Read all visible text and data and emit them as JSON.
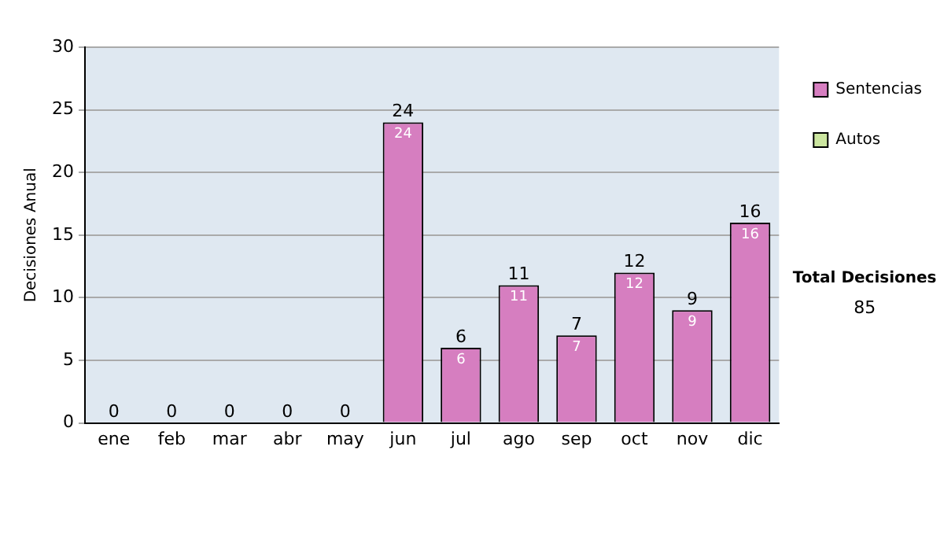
{
  "chart_data": {
    "type": "bar",
    "stacked": true,
    "ylabel": "Decisiones Anual",
    "categories": [
      "ene",
      "feb",
      "mar",
      "abr",
      "may",
      "jun",
      "jul",
      "ago",
      "sep",
      "oct",
      "nov",
      "dic"
    ],
    "series": [
      {
        "name": "Sentencias",
        "color": "#d67ec0",
        "values": [
          0,
          0,
          0,
          0,
          0,
          24,
          6,
          11,
          7,
          12,
          9,
          16
        ],
        "value_labels": [
          null,
          null,
          null,
          null,
          null,
          "24",
          "6",
          "11",
          "7",
          "12",
          "9",
          "16"
        ]
      },
      {
        "name": "Autos",
        "color": "#cce6a0",
        "values": [
          0,
          0,
          0,
          0,
          0,
          0,
          0,
          0,
          0,
          0,
          0,
          0
        ]
      }
    ],
    "totals": [
      "0",
      "0",
      "0",
      "0",
      "0",
      "24",
      "6",
      "11",
      "7",
      "12",
      "9",
      "16"
    ],
    "ylim": [
      0,
      30
    ],
    "yticks": [
      0,
      5,
      10,
      15,
      20,
      25,
      30
    ],
    "grid": "y",
    "legend": "right",
    "annotations": [
      "Total Decisiones",
      "85"
    ]
  }
}
